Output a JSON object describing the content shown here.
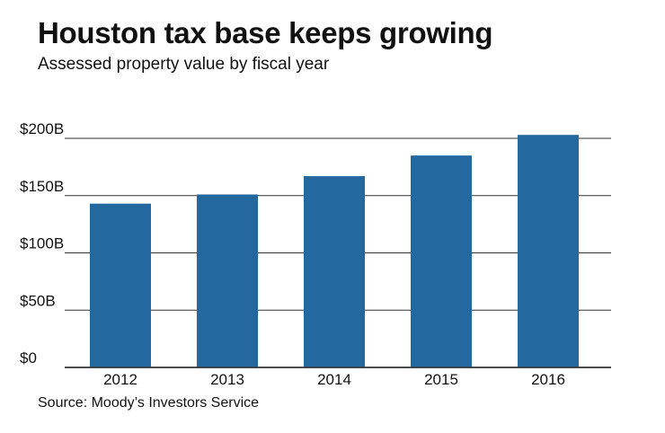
{
  "chart_data": {
    "type": "bar",
    "title": "Houston tax base keeps growing",
    "subtitle": "Assessed property value by fiscal year",
    "source": "Source: Moody’s Investors Service",
    "categories": [
      "2012",
      "2013",
      "2014",
      "2015",
      "2016"
    ],
    "values": [
      143,
      151,
      167,
      185,
      203
    ],
    "unit": "billion USD",
    "ylim": [
      0,
      200
    ],
    "yticks": [
      0,
      50,
      100,
      150,
      200
    ],
    "ytick_labels": [
      "$0",
      "$50B",
      "$100B",
      "$150B",
      "$200B"
    ],
    "xlabel": "",
    "ylabel": "",
    "grid": true,
    "bar_color": "#2468A0",
    "grid_color": "#333333"
  }
}
